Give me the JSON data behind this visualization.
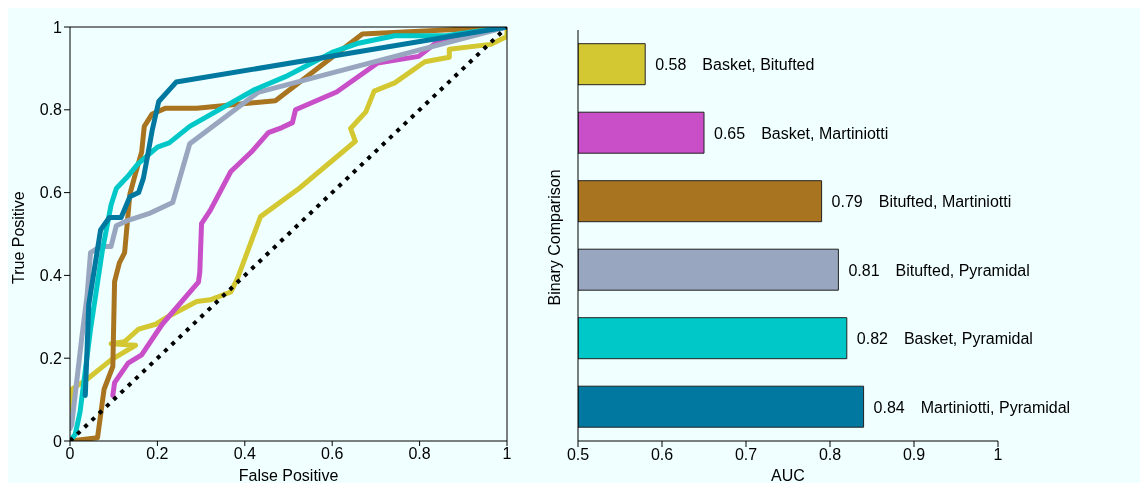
{
  "chart_data": [
    {
      "type": "line",
      "xlabel": "False Positive",
      "ylabel": "True Positive",
      "xlim": [
        0,
        1
      ],
      "ylim": [
        0,
        1
      ],
      "xticks": [
        0,
        0.2,
        0.4,
        0.6,
        0.8,
        1
      ],
      "yticks": [
        0,
        0.2,
        0.4,
        0.6,
        0.8,
        1
      ],
      "marker": "none",
      "series": [
        {
          "color": "#d4c832",
          "x": [
            0,
            0.004,
            0.039,
            0.094,
            0.15,
            0.094,
            0.125,
            0.157,
            0.196,
            0.227,
            0.29,
            0.321,
            0.368,
            0.383,
            0.436,
            0.524,
            0.653,
            0.642,
            0.677,
            0.696,
            0.743,
            0.812,
            0.868,
            0.868,
            0.962,
            1,
            1
          ],
          "values": [
            0.07,
            0.125,
            0.149,
            0.196,
            0.231,
            0.235,
            0.24,
            0.27,
            0.282,
            0.302,
            0.337,
            0.341,
            0.36,
            0.392,
            0.542,
            0.61,
            0.724,
            0.755,
            0.795,
            0.845,
            0.865,
            0.916,
            0.927,
            0.946,
            0.958,
            0.977,
            1
          ]
        },
        {
          "color": "#c94fc9",
          "x": [
            0.098,
            0.102,
            0.133,
            0.164,
            0.211,
            0.282,
            0.294,
            0.297,
            0.301,
            0.321,
            0.368,
            0.415,
            0.454,
            0.485,
            0.509,
            0.516,
            0.61,
            0.704,
            0.798,
            0.845,
            1
          ],
          "values": [
            0.11,
            0.141,
            0.188,
            0.208,
            0.282,
            0.369,
            0.384,
            0.408,
            0.525,
            0.557,
            0.651,
            0.698,
            0.745,
            0.757,
            0.769,
            0.8,
            0.843,
            0.913,
            0.929,
            0.968,
            1
          ]
        },
        {
          "color": "#a87420",
          "x": [
            0,
            0.063,
            0.078,
            0.098,
            0.102,
            0.113,
            0.125,
            0.137,
            0.149,
            0.164,
            0.17,
            0.188,
            0.219,
            0.29,
            0.47,
            0.669,
            1
          ],
          "values": [
            0,
            0.008,
            0.125,
            0.18,
            0.385,
            0.43,
            0.455,
            0.596,
            0.643,
            0.698,
            0.76,
            0.79,
            0.804,
            0.804,
            0.822,
            0.983,
            1
          ]
        },
        {
          "color": "#98a6bf",
          "x": [
            0,
            0.004,
            0.027,
            0.039,
            0.047,
            0.07,
            0.094,
            0.106,
            0.133,
            0.18,
            0.235,
            0.274,
            0.43,
            1
          ],
          "values": [
            0.03,
            0.04,
            0.25,
            0.35,
            0.455,
            0.47,
            0.47,
            0.52,
            0.533,
            0.549,
            0.576,
            0.718,
            0.842,
            1
          ]
        },
        {
          "color": "#00c8c8",
          "x": [
            0,
            0.012,
            0.023,
            0.047,
            0.074,
            0.094,
            0.106,
            0.133,
            0.156,
            0.2,
            0.227,
            0.274,
            0.423,
            0.493,
            0.603,
            0.657,
            0.743,
            0.86,
            1
          ],
          "values": [
            0,
            0.016,
            0.07,
            0.27,
            0.46,
            0.57,
            0.61,
            0.64,
            0.67,
            0.71,
            0.72,
            0.76,
            0.849,
            0.88,
            0.94,
            0.96,
            0.979,
            0.979,
            1
          ]
        },
        {
          "color": "#00789f",
          "x": [
            0.035,
            0.043,
            0.055,
            0.07,
            0.09,
            0.117,
            0.137,
            0.157,
            0.168,
            0.176,
            0.188,
            0.203,
            0.243,
            1
          ],
          "values": [
            0.11,
            0.33,
            0.41,
            0.51,
            0.54,
            0.54,
            0.59,
            0.6,
            0.635,
            0.68,
            0.75,
            0.82,
            0.867,
            1
          ]
        },
        {
          "color": "#000000",
          "line_style": "dotted",
          "x": [
            0,
            1
          ],
          "values": [
            0,
            1
          ]
        }
      ]
    },
    {
      "type": "bar",
      "orientation": "horizontal",
      "xlabel": "AUC",
      "ylabel": "Binary Comparison",
      "xlim": [
        0.5,
        1
      ],
      "xticks": [
        0.5,
        0.6,
        0.7,
        0.8,
        0.9,
        1
      ],
      "data_labels": true,
      "categories": [
        "Basket, Bitufted",
        "Basket, Martiniotti",
        "Bitufted, Martiniotti",
        "Bitufted, Pyramidal",
        "Basket, Pyramidal",
        "Martiniotti, Pyramidal"
      ],
      "values": [
        0.58,
        0.65,
        0.79,
        0.81,
        0.82,
        0.84
      ],
      "colors": [
        "#d4c832",
        "#c94fc9",
        "#a87420",
        "#98a6bf",
        "#00c8c8",
        "#00789f"
      ]
    }
  ]
}
